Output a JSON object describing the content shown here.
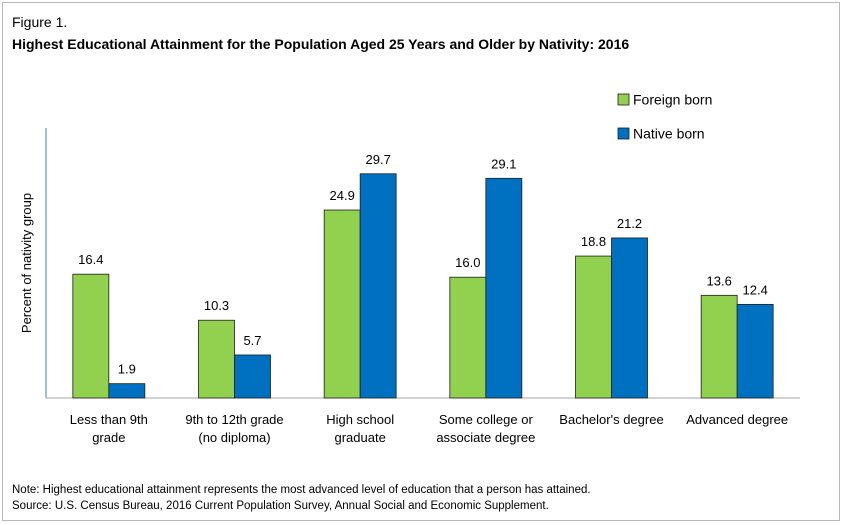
{
  "figure_label": "Figure 1.",
  "notes": {
    "note": "Note:  Highest educational attainment represents the most advanced level of education that a person has attained.",
    "source": "Source:  U.S. Census Bureau, 2016 Current Population Survey, Annual Social and Economic Supplement."
  },
  "chart_data": {
    "type": "bar",
    "title": "Highest Educational Attainment for the Population Aged 25 Years and Older by Nativity: 2016",
    "ylabel": "Percent of nativity group",
    "xlabel": "",
    "ylim": [
      0,
      32
    ],
    "grid": false,
    "legend_position": "top-right",
    "categories": [
      [
        "Less than 9th",
        "grade"
      ],
      [
        "9th to 12th grade",
        "(no diploma)"
      ],
      [
        "High school",
        "graduate"
      ],
      [
        "Some college or",
        "associate degree"
      ],
      [
        "Bachelor's degree"
      ],
      [
        "Advanced degree"
      ]
    ],
    "series": [
      {
        "name": "Foreign born",
        "color": "#92d050",
        "values": [
          16.4,
          10.3,
          24.9,
          16.0,
          18.8,
          13.6
        ],
        "labels": [
          "16.4",
          "10.3",
          "24.9",
          "16.0",
          "18.8",
          "13.6"
        ]
      },
      {
        "name": "Native born",
        "color": "#0070c0",
        "values": [
          1.9,
          5.7,
          29.7,
          29.1,
          21.2,
          12.4
        ],
        "labels": [
          "1.9",
          "5.7",
          "29.7",
          "29.1",
          "21.2",
          "12.4"
        ]
      }
    ]
  }
}
